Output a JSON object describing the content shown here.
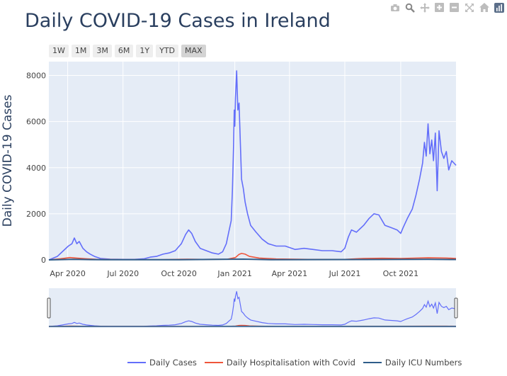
{
  "toolbar": {
    "icons": [
      "camera-icon",
      "zoom-icon",
      "pan-icon",
      "zoom-in-icon",
      "zoom-out-icon",
      "autoscale-icon",
      "home-icon",
      "plotly-logo-icon"
    ]
  },
  "range_selector": {
    "buttons": [
      {
        "label": "1W",
        "active": false
      },
      {
        "label": "1M",
        "active": false
      },
      {
        "label": "3M",
        "active": false
      },
      {
        "label": "6M",
        "active": false
      },
      {
        "label": "1Y",
        "active": false
      },
      {
        "label": "YTD",
        "active": false
      },
      {
        "label": "MAX",
        "active": true
      }
    ]
  },
  "chart_data": {
    "type": "line",
    "title": "Daily COVID-19 Cases in Ireland",
    "xlabel": "",
    "ylabel": "Daily COVID-19 Cases",
    "xlim": [
      "2020-03-01",
      "2021-12-31"
    ],
    "ylim": [
      0,
      8600
    ],
    "xticks": [
      {
        "date": "2020-04-01",
        "label": "Apr 2020"
      },
      {
        "date": "2020-07-01",
        "label": "Jul 2020"
      },
      {
        "date": "2020-10-01",
        "label": "Oct 2020"
      },
      {
        "date": "2021-01-01",
        "label": "Jan 2021"
      },
      {
        "date": "2021-04-01",
        "label": "Apr 2021"
      },
      {
        "date": "2021-07-01",
        "label": "Jul 2021"
      },
      {
        "date": "2021-10-01",
        "label": "Oct 2021"
      }
    ],
    "yticks": [
      0,
      2000,
      4000,
      6000,
      8000
    ],
    "grid": true,
    "legend_position": "bottom",
    "rangeslider": true,
    "series": [
      {
        "name": "Daily Cases",
        "color": "#636efa",
        "points": [
          [
            "2020-03-01",
            0
          ],
          [
            "2020-03-15",
            150
          ],
          [
            "2020-03-25",
            400
          ],
          [
            "2020-04-02",
            600
          ],
          [
            "2020-04-08",
            700
          ],
          [
            "2020-04-12",
            950
          ],
          [
            "2020-04-16",
            700
          ],
          [
            "2020-04-20",
            800
          ],
          [
            "2020-04-26",
            500
          ],
          [
            "2020-05-02",
            350
          ],
          [
            "2020-05-08",
            250
          ],
          [
            "2020-05-15",
            150
          ],
          [
            "2020-05-25",
            60
          ],
          [
            "2020-06-10",
            30
          ],
          [
            "2020-07-01",
            20
          ],
          [
            "2020-07-20",
            20
          ],
          [
            "2020-08-05",
            50
          ],
          [
            "2020-08-15",
            120
          ],
          [
            "2020-08-25",
            150
          ],
          [
            "2020-09-05",
            250
          ],
          [
            "2020-09-15",
            300
          ],
          [
            "2020-09-25",
            400
          ],
          [
            "2020-10-05",
            700
          ],
          [
            "2020-10-12",
            1100
          ],
          [
            "2020-10-17",
            1300
          ],
          [
            "2020-10-22",
            1150
          ],
          [
            "2020-10-28",
            800
          ],
          [
            "2020-11-05",
            500
          ],
          [
            "2020-11-15",
            400
          ],
          [
            "2020-11-25",
            300
          ],
          [
            "2020-12-05",
            250
          ],
          [
            "2020-12-12",
            350
          ],
          [
            "2020-12-18",
            700
          ],
          [
            "2020-12-22",
            1200
          ],
          [
            "2020-12-26",
            1700
          ],
          [
            "2020-12-28",
            3000
          ],
          [
            "2020-12-30",
            5000
          ],
          [
            "2020-12-31",
            6500
          ],
          [
            "2021-01-01",
            5800
          ],
          [
            "2021-01-02",
            7000
          ],
          [
            "2021-01-04",
            8200
          ],
          [
            "2021-01-06",
            6500
          ],
          [
            "2021-01-08",
            6800
          ],
          [
            "2021-01-10",
            5200
          ],
          [
            "2021-01-12",
            3500
          ],
          [
            "2021-01-15",
            3100
          ],
          [
            "2021-01-18",
            2500
          ],
          [
            "2021-01-22",
            2000
          ],
          [
            "2021-01-27",
            1500
          ],
          [
            "2021-02-05",
            1200
          ],
          [
            "2021-02-15",
            900
          ],
          [
            "2021-02-25",
            700
          ],
          [
            "2021-03-10",
            600
          ],
          [
            "2021-03-25",
            600
          ],
          [
            "2021-04-10",
            450
          ],
          [
            "2021-04-25",
            500
          ],
          [
            "2021-05-10",
            450
          ],
          [
            "2021-05-25",
            400
          ],
          [
            "2021-06-10",
            400
          ],
          [
            "2021-06-25",
            350
          ],
          [
            "2021-07-01",
            500
          ],
          [
            "2021-07-07",
            1000
          ],
          [
            "2021-07-12",
            1300
          ],
          [
            "2021-07-20",
            1200
          ],
          [
            "2021-08-01",
            1500
          ],
          [
            "2021-08-10",
            1800
          ],
          [
            "2021-08-18",
            2000
          ],
          [
            "2021-08-26",
            1950
          ],
          [
            "2021-09-05",
            1500
          ],
          [
            "2021-09-15",
            1400
          ],
          [
            "2021-09-25",
            1300
          ],
          [
            "2021-10-01",
            1150
          ],
          [
            "2021-10-05",
            1400
          ],
          [
            "2021-10-12",
            1800
          ],
          [
            "2021-10-20",
            2200
          ],
          [
            "2021-10-26",
            2800
          ],
          [
            "2021-11-01",
            3500
          ],
          [
            "2021-11-06",
            4200
          ],
          [
            "2021-11-09",
            5100
          ],
          [
            "2021-11-12",
            4500
          ],
          [
            "2021-11-15",
            5900
          ],
          [
            "2021-11-18",
            4600
          ],
          [
            "2021-11-21",
            5200
          ],
          [
            "2021-11-24",
            4300
          ],
          [
            "2021-11-27",
            5500
          ],
          [
            "2021-11-30",
            3000
          ],
          [
            "2021-12-03",
            5600
          ],
          [
            "2021-12-07",
            4700
          ],
          [
            "2021-12-11",
            4400
          ],
          [
            "2021-12-15",
            4700
          ],
          [
            "2021-12-19",
            3900
          ],
          [
            "2021-12-24",
            4300
          ],
          [
            "2021-12-31",
            4100
          ]
        ]
      },
      {
        "name": "Daily Hospitalisation with Covid",
        "color": "#ef553b",
        "points": [
          [
            "2020-03-01",
            0
          ],
          [
            "2020-03-20",
            50
          ],
          [
            "2020-04-05",
            100
          ],
          [
            "2020-04-15",
            80
          ],
          [
            "2020-05-01",
            50
          ],
          [
            "2020-05-20",
            20
          ],
          [
            "2020-07-01",
            10
          ],
          [
            "2020-09-01",
            10
          ],
          [
            "2020-10-15",
            30
          ],
          [
            "2020-11-10",
            20
          ],
          [
            "2020-12-20",
            30
          ],
          [
            "2021-01-02",
            100
          ],
          [
            "2021-01-08",
            240
          ],
          [
            "2021-01-12",
            280
          ],
          [
            "2021-01-18",
            250
          ],
          [
            "2021-01-25",
            150
          ],
          [
            "2021-02-10",
            80
          ],
          [
            "2021-03-10",
            40
          ],
          [
            "2021-05-01",
            20
          ],
          [
            "2021-07-01",
            20
          ],
          [
            "2021-08-01",
            60
          ],
          [
            "2021-09-01",
            70
          ],
          [
            "2021-10-01",
            60
          ],
          [
            "2021-11-15",
            90
          ],
          [
            "2021-12-15",
            80
          ],
          [
            "2021-12-31",
            60
          ]
        ]
      },
      {
        "name": "Daily ICU Numbers",
        "color": "#2f5d8a",
        "points": [
          [
            "2020-03-01",
            0
          ],
          [
            "2020-04-10",
            20
          ],
          [
            "2020-06-01",
            5
          ],
          [
            "2020-10-01",
            5
          ],
          [
            "2021-01-15",
            30
          ],
          [
            "2021-03-01",
            10
          ],
          [
            "2021-08-01",
            15
          ],
          [
            "2021-11-15",
            20
          ],
          [
            "2021-12-31",
            15
          ]
        ]
      }
    ]
  }
}
